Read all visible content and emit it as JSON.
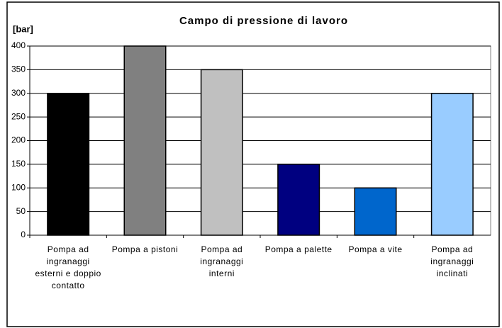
{
  "chart_data": {
    "type": "bar",
    "title": "Campo di pressione di lavoro",
    "ylabel": "[bar]",
    "categories": [
      "Pompa ad ingranaggi esterni e doppio contatto",
      "Pompa a pistoni",
      "Pompa ad ingranaggi interni",
      "Pompa a palette",
      "Pompa a vite",
      "Pompa ad ingranaggi inclinati"
    ],
    "values": [
      300,
      400,
      350,
      150,
      100,
      300
    ],
    "colors": [
      "#000000",
      "#808080",
      "#c0c0c0",
      "#000080",
      "#0066cc",
      "#99ccff"
    ],
    "ylim": [
      0,
      400
    ],
    "yticks": [
      0,
      50,
      100,
      150,
      200,
      250,
      300,
      350,
      400
    ],
    "grid": true
  }
}
